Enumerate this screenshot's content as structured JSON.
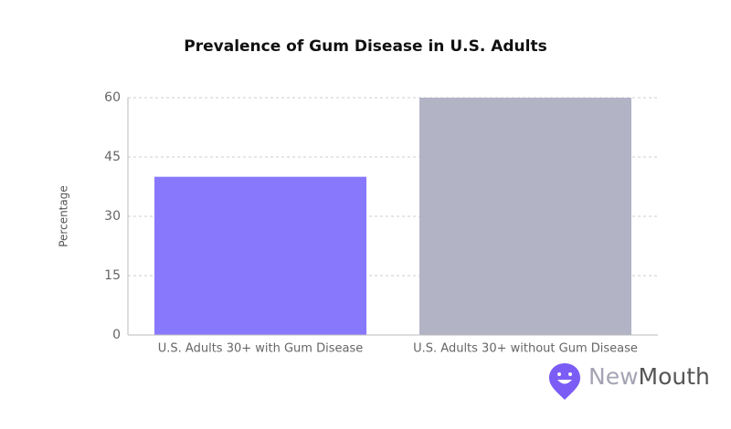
{
  "chart_data": {
    "type": "bar",
    "title": "Prevalence of Gum Disease in U.S. Adults",
    "y_label": "Percentage",
    "categories": [
      "U.S. Adults 30+ with Gum Disease",
      "U.S. Adults 30+ without Gum Disease"
    ],
    "values": [
      40,
      60
    ],
    "colors": [
      "#8878fc",
      "#b3b3c6"
    ],
    "ylim": [
      0,
      60
    ],
    "yticks": [
      0,
      15,
      30,
      45,
      60
    ],
    "grid": true
  },
  "logo": {
    "part1": "New",
    "part2": "Mouth"
  }
}
